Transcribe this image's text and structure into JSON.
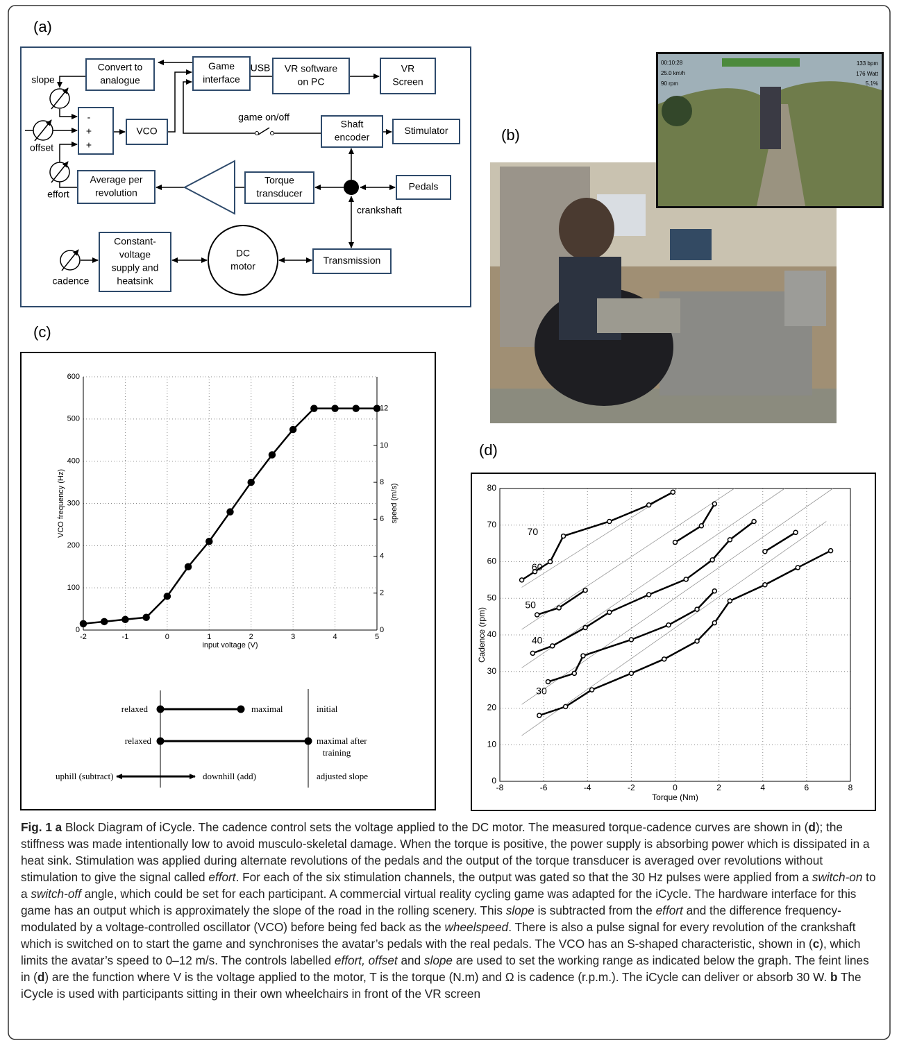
{
  "panels": [
    "(a)",
    "(b)",
    "(c)",
    "(d)"
  ],
  "diagram": {
    "nodes": [
      [
        "Convert to",
        "analogue"
      ],
      [
        "Game",
        "interface"
      ],
      [
        "VR software",
        "on PC"
      ],
      [
        "VR",
        "Screen"
      ],
      [
        "VCO"
      ],
      [
        "Shaft",
        "encoder"
      ],
      [
        "Stimulator"
      ],
      [
        "Average per",
        "revolution"
      ],
      [
        "Torque",
        "transducer"
      ],
      [
        "Pedals"
      ],
      [
        "Constant-",
        "voltage",
        "supply and",
        "heatsink"
      ],
      [
        "Transmission"
      ]
    ],
    "motor": [
      "DC",
      "motor"
    ],
    "summer": [
      "-",
      "+",
      "+"
    ],
    "labels": [
      "USB",
      "game on/off",
      "crankshaft"
    ],
    "knobs": [
      "slope",
      "offset",
      "effort",
      "cadence"
    ]
  },
  "photo": {
    "hud": [
      "00:10:28",
      "25.0 km/h",
      "90 rpm",
      "133 bpm",
      "176 Watt",
      "5.1%"
    ]
  },
  "chart_data": [
    {
      "type": "line",
      "x_label": "input voltage (V)",
      "y_label": "VCO frequency (Hz)",
      "y2_label": "speed (m/s)",
      "x": [
        -2,
        -1.5,
        -1,
        -0.5,
        0,
        0.5,
        1,
        1.5,
        2,
        2.5,
        3,
        3.5,
        4,
        4.5,
        5
      ],
      "series": [
        {
          "color": "#000000",
          "values": [
            15,
            20,
            25,
            30,
            80,
            150,
            210,
            280,
            350,
            415,
            475,
            525,
            525,
            525,
            525
          ]
        }
      ],
      "xlim": [
        -2,
        5
      ],
      "xticks": [
        -2,
        -1,
        0,
        1,
        2,
        3,
        4,
        5
      ],
      "ylim": [
        0,
        600
      ],
      "yticks": [
        0,
        100,
        200,
        300,
        400,
        500,
        600
      ],
      "y2lim": [
        0,
        13.714
      ],
      "y2ticks": [
        0,
        2,
        4,
        6,
        8,
        10,
        12
      ],
      "grid": true
    },
    {
      "type": "line",
      "x_label": "Torque (Nm)",
      "y_label": "Cadence (rpm)",
      "curve_labels": [
        "70",
        "60",
        "50",
        "40",
        "30"
      ],
      "series": [
        {
          "color": "#999999",
          "thin": true,
          "x": [
            -7,
            6.9
          ],
          "values": [
            12.5,
            71
          ]
        },
        {
          "color": "#999999",
          "thin": true,
          "x": [
            -7,
            7.2
          ],
          "values": [
            21,
            80
          ]
        },
        {
          "color": "#999999",
          "thin": true,
          "x": [
            -7,
            5
          ],
          "values": [
            31,
            80
          ]
        },
        {
          "color": "#999999",
          "thin": true,
          "x": [
            -7,
            2.7
          ],
          "values": [
            41.5,
            80
          ]
        },
        {
          "color": "#999999",
          "thin": true,
          "x": [
            -7,
            0.1
          ],
          "values": [
            53,
            80
          ]
        },
        {
          "color": "#000000",
          "x": [
            -7,
            -6.4,
            -5.7,
            -5.1,
            -3,
            -1.2,
            -0.1
          ],
          "values": [
            55,
            57.3,
            60,
            67,
            71,
            75.5,
            79
          ]
        },
        {
          "color": "#000000",
          "x": [
            0,
            1.2,
            1.8
          ],
          "values": [
            65.3,
            69.8,
            75.8
          ]
        },
        {
          "color": "#000000",
          "x": [
            -6.3,
            -5.3,
            -4.1
          ],
          "values": [
            45.5,
            47.4,
            52.2
          ]
        },
        {
          "color": "#000000",
          "x": [
            -6.5,
            -5.6,
            -4.1,
            -3,
            -1.2,
            0.5,
            1.7,
            2.5,
            3.6
          ],
          "values": [
            35,
            37,
            42,
            46.2,
            51,
            55.2,
            60.5,
            66,
            71
          ]
        },
        {
          "color": "#000000",
          "x": [
            -5.8,
            -4.6,
            -4.2,
            -2,
            -0.3,
            1,
            1.8
          ],
          "values": [
            27.2,
            29.5,
            34.3,
            38.7,
            42.7,
            47,
            52
          ]
        },
        {
          "color": "#000000",
          "x": [
            -6.2,
            -5,
            -3.8,
            -2,
            -0.5,
            1,
            1.8,
            2.5,
            4.1,
            5.6,
            7.1
          ],
          "values": [
            18,
            20.4,
            25,
            29.5,
            33.4,
            38.3,
            43.3,
            49.3,
            53.7,
            58.4,
            63
          ]
        },
        {
          "color": "#000000",
          "x": [
            4.1,
            5.5
          ],
          "values": [
            62.8,
            68
          ]
        }
      ],
      "xlim": [
        -8,
        8
      ],
      "xticks": [
        -8,
        -6,
        -4,
        -2,
        0,
        2,
        4,
        6,
        8
      ],
      "ylim": [
        0,
        80
      ],
      "yticks": [
        0,
        10,
        20,
        30,
        40,
        50,
        60,
        70,
        80
      ],
      "grid": true
    }
  ],
  "range_diagram": [
    "relaxed",
    "maximal",
    "initial",
    "relaxed",
    "maximal after",
    "training",
    "uphill (subtract)",
    "downhill (add)",
    "adjusted slope"
  ],
  "caption": [
    "Fig. 1 a",
    " Block Diagram of iCycle. The cadence control sets the voltage applied to the DC motor. The measured torque-cadence curves are shown in (",
    "d",
    "); the stiffness was made intentionally low to avoid musculo-skeletal damage. When the torque is positive, the power supply is absorbing power which is dissipated in a heat sink. Stimulation was applied during alternate revolutions of the pedals and the output of the torque transducer is averaged over revolutions without stimulation to give the signal called ",
    "effort",
    ". For each of the six stimulation channels, the output was gated so that the 30 Hz pulses were applied from a ",
    "switch-on",
    " to a ",
    "switch-off",
    " angle, which could be set for each participant. A commercial virtual reality cycling game was adapted for the iCycle. The hardware interface for this game has an output which is approximately the slope of the road in the rolling scenery. This ",
    "slope",
    " is subtracted from the ",
    "effort",
    " and the difference frequency-modulated by a voltage-controlled oscillator (VCO) before being fed back as the ",
    "wheelspeed",
    ". There is also a pulse signal for every revolution of the crankshaft which is switched on to start the game and synchronises the avatar’s pedals with the real pedals. The VCO has an S-shaped characteristic, shown in (",
    "c",
    "), which limits the avatar’s speed to 0–12 m/s. The controls labelled ",
    "effort, offset",
    " and ",
    "slope",
    " are used to set the working range as indicated below the graph. The feint lines in (",
    "d",
    ") are the function where V is the voltage applied to the motor, T is the torque (N.m) and Ω is cadence (r.p.m.). The iCycle can deliver or absorb 30 W. ",
    "b",
    " The iCycle is used with participants sitting in their own wheelchairs in front of the VR screen"
  ]
}
